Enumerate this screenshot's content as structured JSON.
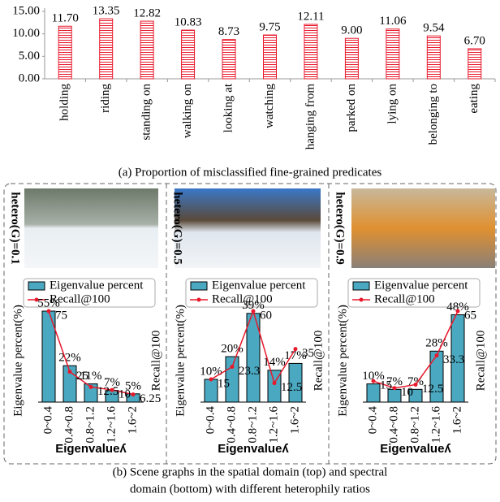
{
  "chart_data": [
    {
      "type": "bar",
      "color": "#e8192c",
      "categories": [
        "holding",
        "riding",
        "standing on",
        "walking on",
        "looking at",
        "watching",
        "hanging from",
        "parked on",
        "lying on",
        "belonging to",
        "eating"
      ],
      "values": [
        11.7,
        13.35,
        12.82,
        10.83,
        8.73,
        9.75,
        12.11,
        9.0,
        11.06,
        9.54,
        6.7
      ],
      "value_labels": [
        "11.70",
        "13.35",
        "12.82",
        "10.83",
        "8.73",
        "9.75",
        "12.11",
        "9.00",
        "11.06",
        "9.54",
        "6.70"
      ],
      "ylim": [
        0,
        15
      ],
      "yticks": [
        {
          "value": 0,
          "label": "0.00"
        },
        {
          "value": 5,
          "label": "5.00"
        },
        {
          "value": 10,
          "label": "10.00"
        },
        {
          "value": 15,
          "label": "15.00"
        }
      ],
      "caption": "(a) Proportion of misclassified fine-grained predicates"
    },
    {
      "type": "combo",
      "annotation": "hetero(G)=0.1",
      "categories": [
        "0~0.4",
        "0.4~0.8",
        "0.8~1.2",
        "1.2~1.6",
        "1.6~2"
      ],
      "series": [
        {
          "name": "Eigenvalue percent",
          "color": "#4aa8c0",
          "values": [
            55,
            22,
            11,
            7,
            5
          ],
          "value_labels": [
            "55%",
            "22%",
            "11%",
            "7%",
            "5%"
          ]
        },
        {
          "name": "Recall@100",
          "color": "#e8192c",
          "axis": "y2",
          "values": [
            75,
            25,
            12.5,
            10,
            6.25
          ]
        }
      ],
      "ylim": [
        0,
        55
      ],
      "y2lim": [
        0,
        75
      ],
      "ylabel": "Eigenvalue percent(%)",
      "y2label": "Recall@100",
      "xlabel": "Eigenvalueʎ"
    },
    {
      "type": "combo",
      "annotation": "hetero(G)=0.5",
      "categories": [
        "0~0.4",
        "0.4~0.8",
        "0.8~1.2",
        "1.2~1.6",
        "1.6~2"
      ],
      "series": [
        {
          "name": "Eigenvalue percent",
          "color": "#4aa8c0",
          "values": [
            10,
            20,
            39,
            14,
            17
          ],
          "value_labels": [
            "10%",
            "20%",
            "39%",
            "14%",
            "17%"
          ]
        },
        {
          "name": "Recall@100",
          "color": "#e8192c",
          "axis": "y2",
          "values": [
            15,
            23.3,
            60,
            12.5,
            35
          ]
        }
      ],
      "ylim": [
        0,
        40
      ],
      "y2lim": [
        0,
        60
      ],
      "ylabel": "Eigenvalue percent(%)",
      "y2label": "Recall@100",
      "xlabel": "Eigenvalueʎ"
    },
    {
      "type": "combo",
      "annotation": "hetero(G)=0.9",
      "categories": [
        "0~0.4",
        "0.4~0.8",
        "0.8~1.2",
        "1.2~1.6",
        "1.6~2"
      ],
      "series": [
        {
          "name": "Eigenvalue percent",
          "color": "#4aa8c0",
          "values": [
            10,
            7,
            7,
            28,
            48
          ],
          "value_labels": [
            "10%",
            "7%",
            "7%",
            "28%",
            "48%"
          ]
        },
        {
          "name": "Recall@100",
          "color": "#e8192c",
          "axis": "y2",
          "values": [
            15,
            10,
            12.5,
            33.3,
            65
          ]
        }
      ],
      "ylim": [
        0,
        50
      ],
      "y2lim": [
        0,
        65
      ],
      "ylabel": "Eigenvalue percent(%)",
      "y2label": "Recall@100",
      "xlabel": "Eigenvalueʎ"
    }
  ],
  "caption_b": [
    "(b) Scene graphs in the spatial domain (top) and spectral",
    "domain (bottom) with different heterophily ratios"
  ]
}
